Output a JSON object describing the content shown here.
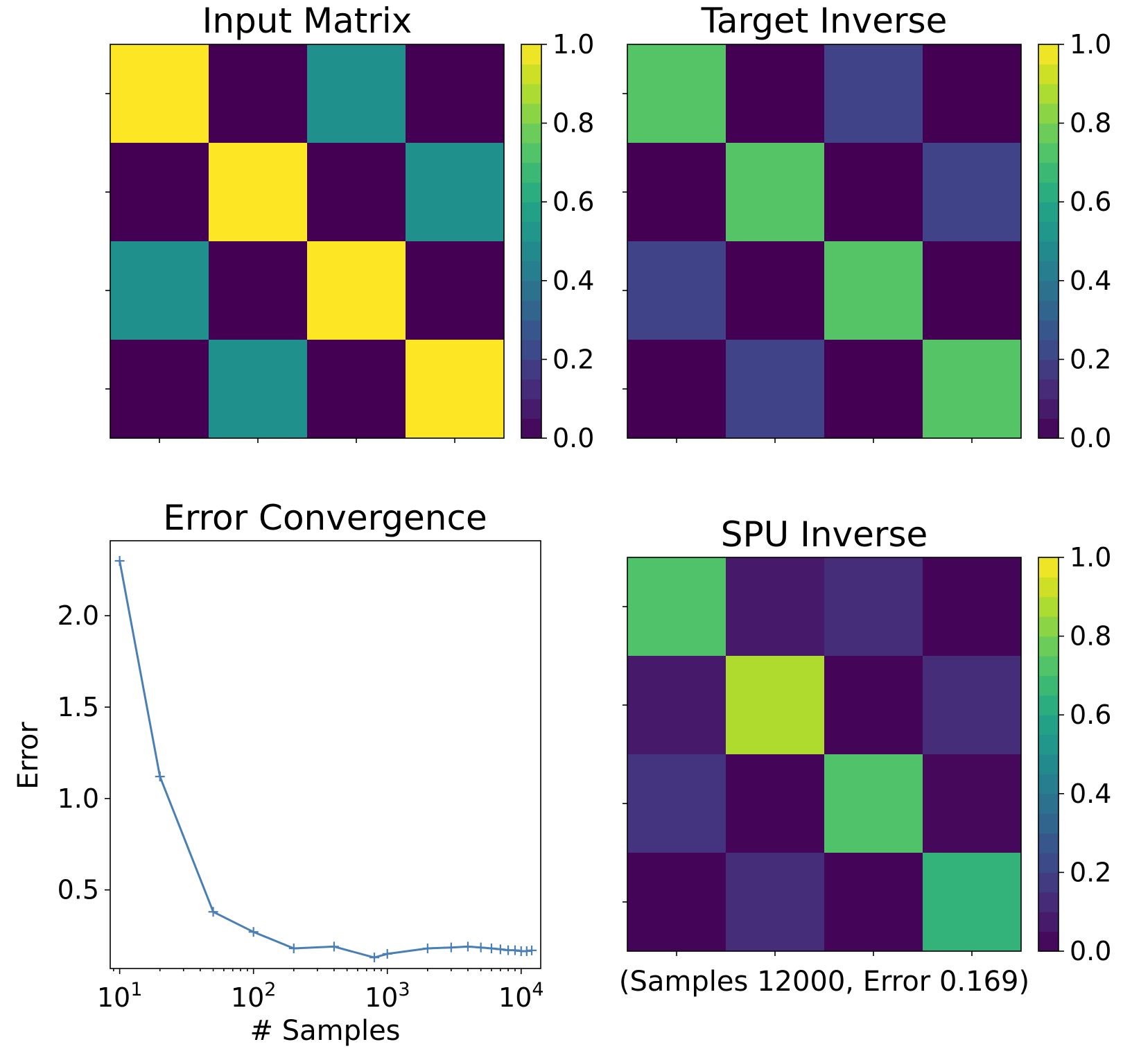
{
  "chart_data": [
    {
      "type": "heatmap",
      "title": "Input Matrix",
      "matrix": [
        [
          1.0,
          0.0,
          0.5,
          0.0
        ],
        [
          0.0,
          1.0,
          0.0,
          0.5
        ],
        [
          0.5,
          0.0,
          1.0,
          0.0
        ],
        [
          0.0,
          0.5,
          0.0,
          1.0
        ]
      ],
      "colorbar": {
        "min": 0.0,
        "max": 1.0,
        "ticks": [
          "0.0",
          "0.2",
          "0.4",
          "0.6",
          "0.8",
          "1.0"
        ],
        "colormap": "viridis"
      }
    },
    {
      "type": "heatmap",
      "title": "Target Inverse",
      "matrix": [
        [
          0.73,
          0.0,
          0.2,
          0.0
        ],
        [
          0.0,
          0.73,
          0.0,
          0.2
        ],
        [
          0.2,
          0.0,
          0.73,
          0.0
        ],
        [
          0.0,
          0.2,
          0.0,
          0.73
        ]
      ],
      "colorbar": {
        "min": 0.0,
        "max": 1.0,
        "ticks": [
          "0.0",
          "0.2",
          "0.4",
          "0.6",
          "0.8",
          "1.0"
        ],
        "colormap": "viridis"
      }
    },
    {
      "type": "line",
      "title": "Error Convergence",
      "xlabel": "# Samples",
      "ylabel": "Error",
      "xscale": "log",
      "xlim": [
        8.5,
        14000
      ],
      "ylim": [
        0.07,
        2.41
      ],
      "yticks": [
        "0.5",
        "1.0",
        "1.5",
        "2.0"
      ],
      "xticks": [
        {
          "base": "10",
          "exp": "1"
        },
        {
          "base": "10",
          "exp": "2"
        },
        {
          "base": "10",
          "exp": "3"
        },
        {
          "base": "10",
          "exp": "4"
        }
      ],
      "color": "#4a7fb5",
      "series": [
        {
          "name": "error",
          "x": [
            10,
            20,
            50,
            100,
            200,
            400,
            800,
            1000,
            2000,
            3000,
            4000,
            5000,
            6000,
            7000,
            8000,
            9000,
            10000,
            11000,
            12000
          ],
          "y": [
            2.3,
            1.12,
            0.38,
            0.27,
            0.18,
            0.19,
            0.13,
            0.15,
            0.18,
            0.185,
            0.19,
            0.185,
            0.18,
            0.175,
            0.17,
            0.17,
            0.165,
            0.165,
            0.169
          ]
        }
      ]
    },
    {
      "type": "heatmap",
      "title": "SPU Inverse",
      "xlabel": "(Samples 12000, Error 0.169)",
      "matrix": [
        [
          0.72,
          0.07,
          0.13,
          0.01
        ],
        [
          0.07,
          0.88,
          0.01,
          0.13
        ],
        [
          0.15,
          0.01,
          0.72,
          0.02
        ],
        [
          0.01,
          0.13,
          0.01,
          0.65
        ]
      ],
      "colorbar": {
        "min": 0.0,
        "max": 1.0,
        "ticks": [
          "0.0",
          "0.2",
          "0.4",
          "0.6",
          "0.8",
          "1.0"
        ],
        "colormap": "viridis"
      }
    }
  ]
}
